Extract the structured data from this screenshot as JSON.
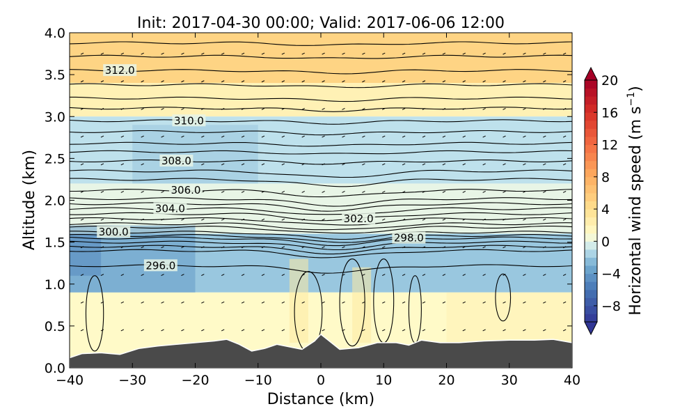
{
  "chart_data": {
    "type": "heatmap",
    "title": "Init: 2017-04-30 00:00; Valid: 2017-06-06 12:00",
    "xlabel": "Distance (km)",
    "ylabel": "Altitude (km)",
    "xlim": [
      -40,
      40
    ],
    "ylim": [
      0,
      4
    ],
    "x_ticks": [
      "−40",
      "−30",
      "−20",
      "−10",
      "0",
      "10",
      "20",
      "30",
      "40"
    ],
    "y_ticks": [
      "0.0",
      "0.5",
      "1.0",
      "1.5",
      "2.0",
      "2.5",
      "3.0",
      "3.5",
      "4.0"
    ],
    "colorbar": {
      "label": "Horizontal wind speed (m s",
      "label_sup": "−1",
      "label_end": ")",
      "range": [
        -10,
        20
      ],
      "ticks": [
        "−8",
        "−4",
        "0",
        "4",
        "8",
        "12",
        "16",
        "20"
      ],
      "extend": "both",
      "colormap": "RdYlBu_r"
    },
    "wind_field_bands": [
      {
        "y": [
          3.4,
          4.0
        ],
        "speed": 5
      },
      {
        "y": [
          3.0,
          3.4
        ],
        "speed": 2
      },
      {
        "y": [
          2.2,
          3.0
        ],
        "speed": -1
      },
      {
        "y": [
          1.6,
          2.2
        ],
        "speed": 0
      },
      {
        "y": [
          0.9,
          1.6
        ],
        "speed": -2
      },
      {
        "y": [
          0.0,
          0.9
        ],
        "speed": 1
      }
    ],
    "potential_temperature_contours": [
      {
        "level": 312.0,
        "y": 3.55,
        "label": "312.0",
        "label_x": -32.0
      },
      {
        "level": 310.0,
        "y": 2.95,
        "label": "310.0",
        "label_x": -21.0
      },
      {
        "level": 308.0,
        "y": 2.47,
        "label": "308.0",
        "label_x": -23.0
      },
      {
        "level": 306.0,
        "y": 2.12,
        "label": "306.0",
        "label_x": -21.5
      },
      {
        "level": 304.0,
        "y": 1.9,
        "label": "304.0",
        "label_x": -24.0
      },
      {
        "level": 302.0,
        "y": 1.78,
        "label": "302.0",
        "label_x": 6.0
      },
      {
        "level": 300.0,
        "y": 1.62,
        "label": "300.0",
        "label_x": -33.0
      },
      {
        "level": 298.0,
        "y": 1.55,
        "label": "298.0",
        "label_x": 14.0
      },
      {
        "level": 296.0,
        "y": 1.22,
        "label": "296.0",
        "label_x": -25.5
      }
    ],
    "terrain_height_km": [
      [
        -40,
        0.12
      ],
      [
        -38,
        0.17
      ],
      [
        -35,
        0.18
      ],
      [
        -32,
        0.16
      ],
      [
        -29,
        0.23
      ],
      [
        -26,
        0.26
      ],
      [
        -23,
        0.28
      ],
      [
        -20,
        0.3
      ],
      [
        -17,
        0.32
      ],
      [
        -15,
        0.34
      ],
      [
        -13,
        0.28
      ],
      [
        -11,
        0.2
      ],
      [
        -9,
        0.23
      ],
      [
        -7,
        0.28
      ],
      [
        -5,
        0.25
      ],
      [
        -3,
        0.22
      ],
      [
        -1,
        0.32
      ],
      [
        0,
        0.4
      ],
      [
        1,
        0.34
      ],
      [
        3,
        0.22
      ],
      [
        6,
        0.24
      ],
      [
        9,
        0.3
      ],
      [
        12,
        0.3
      ],
      [
        14,
        0.27
      ],
      [
        16,
        0.33
      ],
      [
        19,
        0.3
      ],
      [
        22,
        0.3
      ],
      [
        26,
        0.32
      ],
      [
        30,
        0.33
      ],
      [
        34,
        0.33
      ],
      [
        37,
        0.34
      ],
      [
        40,
        0.3
      ]
    ]
  }
}
